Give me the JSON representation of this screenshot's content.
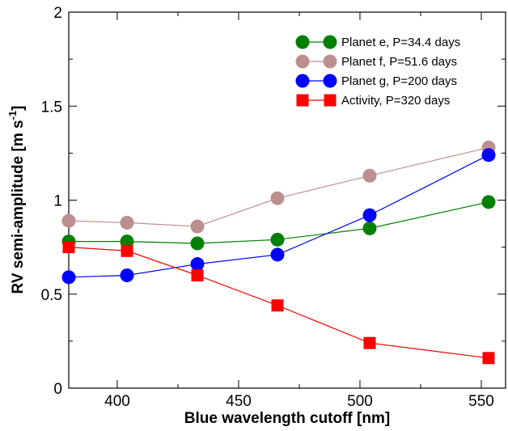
{
  "chart_data": {
    "type": "line",
    "xlabel": "Blue wavelength cutoff [nm]",
    "ylabel": "RV semi-amplitude [m s-1]",
    "ylabel_parts": {
      "main": "RV semi-amplitude [m s",
      "sup": "-1",
      "end": "]"
    },
    "xlim": [
      380,
      560
    ],
    "ylim": [
      0,
      2
    ],
    "x_ticks": [
      400,
      450,
      500,
      550
    ],
    "y_ticks": [
      0,
      0.5,
      1,
      1.5,
      2
    ],
    "x_tick_labels": [
      "400",
      "450",
      "500",
      "550"
    ],
    "y_tick_labels": [
      "0",
      "0.5",
      "1",
      "1.5",
      "2"
    ],
    "grid": false,
    "legend_position": "top-right",
    "x": [
      380,
      404,
      433,
      466,
      504,
      553
    ],
    "series": [
      {
        "name": "Planet e, P=34.4 days",
        "color": "#008000",
        "marker": "circle",
        "values": [
          0.78,
          0.78,
          0.77,
          0.79,
          0.85,
          0.99
        ]
      },
      {
        "name": "Planet f, P=51.6 days",
        "color": "#bc8f8f",
        "marker": "circle",
        "values": [
          0.89,
          0.88,
          0.86,
          1.01,
          1.13,
          1.28
        ]
      },
      {
        "name": "Planet g, P=200 days",
        "color": "#0000ff",
        "marker": "circle",
        "values": [
          0.59,
          0.6,
          0.66,
          0.71,
          0.92,
          1.24
        ]
      },
      {
        "name": "Activity, P=320 days",
        "color": "#ff0000",
        "marker": "square",
        "values": [
          0.75,
          0.73,
          0.6,
          0.44,
          0.24,
          0.16
        ]
      }
    ]
  }
}
